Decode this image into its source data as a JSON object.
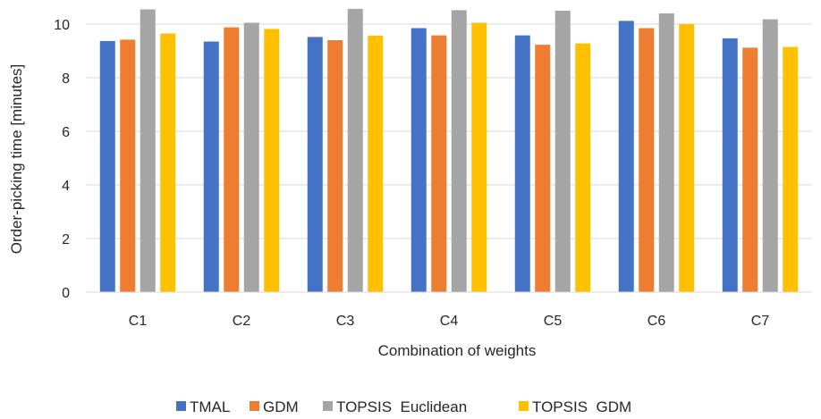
{
  "chart_data": {
    "type": "bar",
    "title": "",
    "xlabel": "Combination of weights",
    "ylabel": "Order-picking time [minutes]",
    "categories": [
      "C1",
      "C2",
      "C3",
      "C4",
      "C5",
      "C6",
      "C7"
    ],
    "ylim": [
      0,
      10
    ],
    "yticks": [
      0,
      2,
      4,
      6,
      8,
      10
    ],
    "grid": true,
    "legend_position": "bottom",
    "series": [
      {
        "name": "TMAL",
        "color": "#4472C4",
        "values": [
          9.37,
          9.35,
          9.52,
          9.85,
          9.58,
          10.12,
          9.47
        ]
      },
      {
        "name": "GDM",
        "color": "#ED7D31",
        "values": [
          9.42,
          9.88,
          9.4,
          9.58,
          9.23,
          9.85,
          9.12
        ]
      },
      {
        "name": "TOPSIS  Euclidean",
        "color": "#A5A5A5",
        "values": [
          10.55,
          10.05,
          10.57,
          10.52,
          10.5,
          10.4,
          10.18
        ]
      },
      {
        "name": "TOPSIS  GDM",
        "color": "#FFC000",
        "values": [
          9.65,
          9.82,
          9.57,
          10.05,
          9.28,
          10.0,
          9.15
        ]
      }
    ]
  }
}
